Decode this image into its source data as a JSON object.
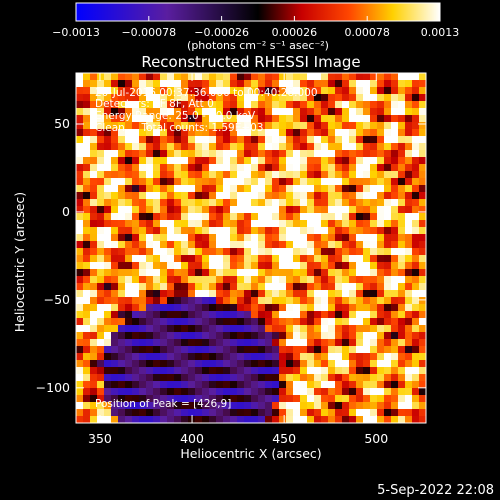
{
  "chart_data": {
    "type": "heatmap",
    "title": "Reconstructed RHESSI Image",
    "xlabel": "Heliocentric X (arcsec)",
    "ylabel": "Heliocentric Y (arcsec)",
    "xlim": [
      337,
      527
    ],
    "ylim": [
      -120,
      79
    ],
    "x_ticks": [
      350,
      400,
      450,
      500
    ],
    "y_ticks": [
      50,
      0,
      -50,
      -100
    ],
    "x_tick_labels": [
      "350",
      "400",
      "450",
      "500"
    ],
    "y_tick_labels": [
      "50",
      "0",
      "−50",
      "−100"
    ],
    "colorbar": {
      "colormap": "blue-purple-red-yellow-white",
      "range": [
        -0.0013,
        0.0013
      ],
      "tick_values": [
        -0.0013,
        -0.00078,
        -0.00026,
        0.00026,
        0.00078,
        0.0013
      ],
      "tick_labels": [
        "−0.0013",
        "−0.00078",
        "−0.00026",
        "0.00026",
        "0.00078",
        "0.0013"
      ],
      "units": "(photons cm⁻² s⁻¹ asec⁻²)"
    },
    "annotations": [
      "20-Jul-2016 00:37:36.000 to 00:40:28.000",
      "Detectors: 3F 8F, Att 0",
      "Energy Range: 25.0 - 50.0 keV",
      "Clean     Total counts: 1.59E+03"
    ],
    "peak_label": "Position of Peak = [426,9]"
  },
  "footer": {
    "timestamp": "5-Sep-2022 22:08"
  }
}
